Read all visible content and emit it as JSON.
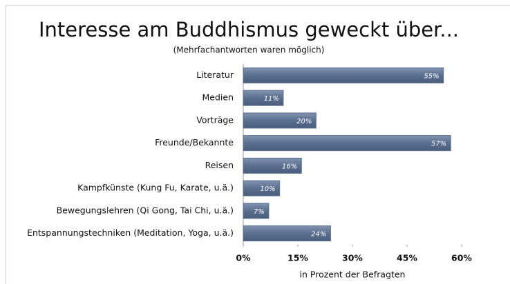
{
  "chart_data": {
    "type": "hbar",
    "title": "Interesse am Buddhismus geweckt über...",
    "subtitle": "(Mehrfachantworten waren möglich)",
    "x_label": "in Prozent der Befragten",
    "categories": [
      "Literatur",
      "Medien",
      "Vorträge",
      "Freunde/Bekannte",
      "Reisen",
      "Kampfkünste (Kung Fu, Karate, u.ä.)",
      "Bewegungslehren (Qi Gong, Tai Chi, u.ä.)",
      "Entspannungstechniken (Meditation, Yoga, u.ä.)"
    ],
    "values": [
      55,
      11,
      20,
      57,
      16,
      10,
      7,
      24
    ],
    "value_labels": [
      "55%",
      "11%",
      "20%",
      "57%",
      "16%",
      "10%",
      "7%",
      "24%"
    ],
    "color": "#5a6e8e",
    "xlim": [
      0,
      60
    ],
    "xticks": [
      {
        "value": 0,
        "label": "0%"
      },
      {
        "value": 15,
        "label": "15%"
      },
      {
        "value": 30,
        "label": "30%"
      },
      {
        "value": 45,
        "label": "45%"
      },
      {
        "value": 60,
        "label": "60%"
      }
    ]
  }
}
